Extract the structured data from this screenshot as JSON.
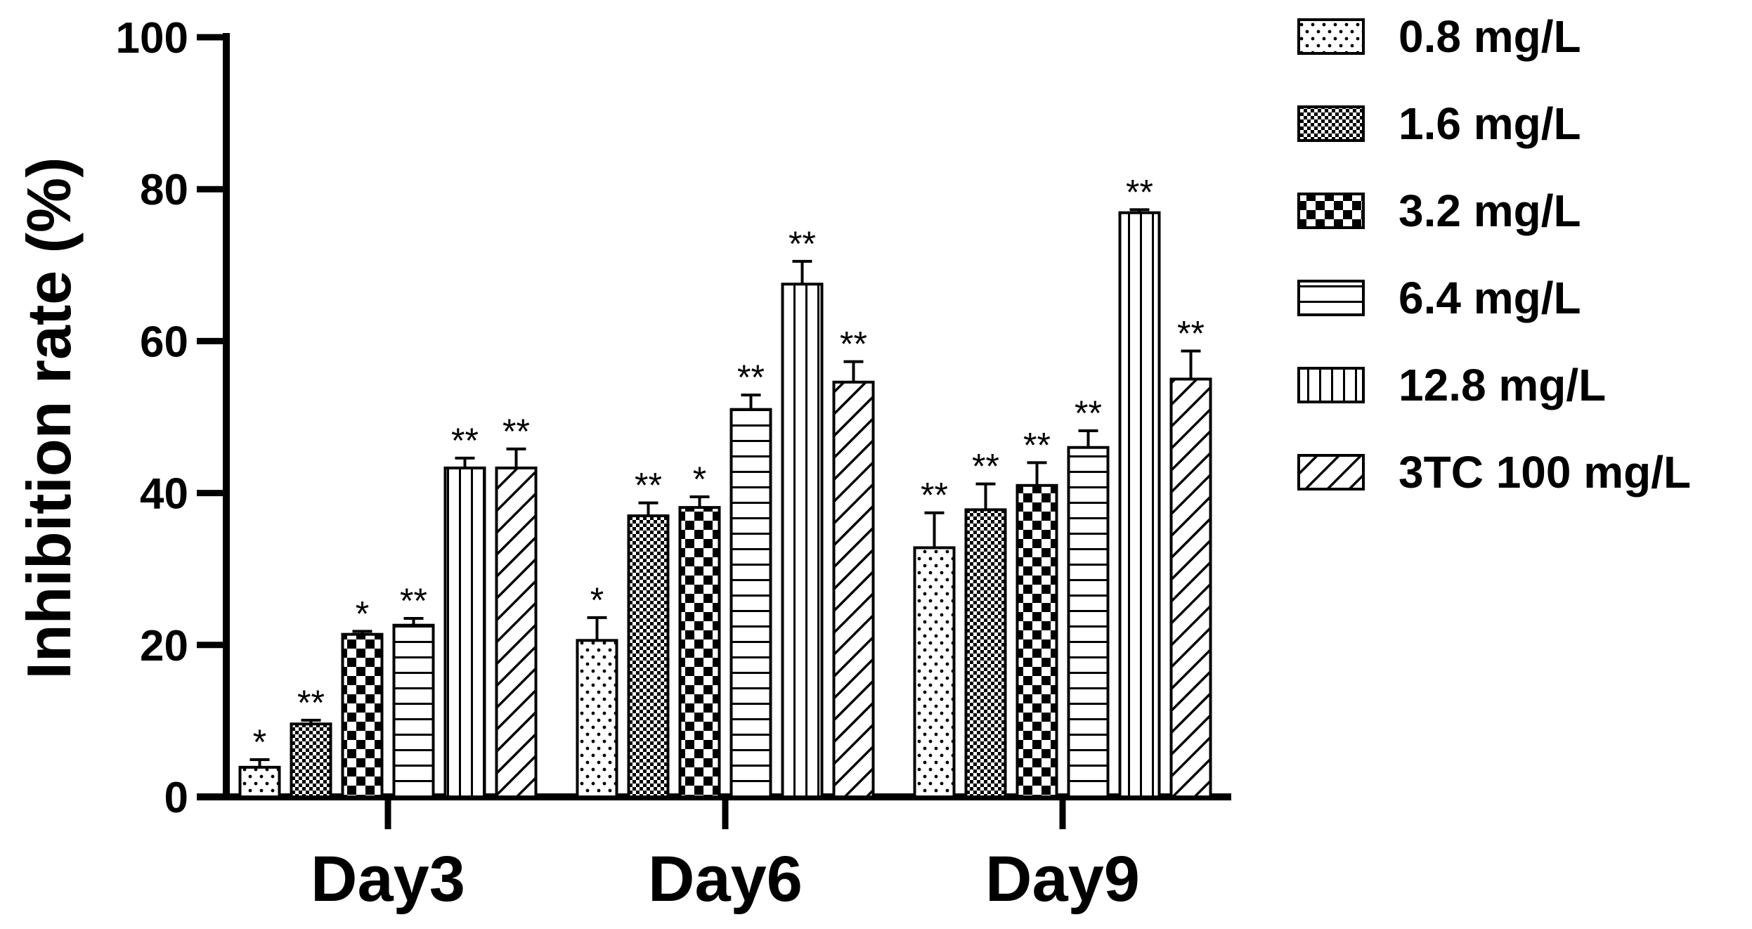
{
  "chart_data": {
    "type": "bar",
    "title": "",
    "xlabel": "",
    "ylabel": "Inhibition rate (%)",
    "ylim": [
      0,
      100
    ],
    "yticks": [
      0,
      20,
      40,
      60,
      80,
      100
    ],
    "grid": false,
    "legend_position": "right",
    "categories": [
      "Day3",
      "Day6",
      "Day9"
    ],
    "series": [
      {
        "name": "0.8 mg/L",
        "pattern": "dots",
        "values": [
          3.9,
          20.6,
          32.8
        ],
        "errors": [
          1.0,
          3.0,
          4.6
        ],
        "significance": [
          "*",
          "*",
          "**"
        ]
      },
      {
        "name": "1.6 mg/L",
        "pattern": "fine-checker",
        "values": [
          9.6,
          37.0,
          37.8
        ],
        "errors": [
          0.5,
          1.7,
          3.4
        ],
        "significance": [
          "**",
          "**",
          "**"
        ]
      },
      {
        "name": "3.2 mg/L",
        "pattern": "checker",
        "values": [
          21.4,
          38.1,
          41.0
        ],
        "errors": [
          0.4,
          1.4,
          3.0
        ],
        "significance": [
          "*",
          "*",
          "**"
        ]
      },
      {
        "name": "6.4 mg/L",
        "pattern": "horizontal",
        "values": [
          22.6,
          51.0,
          46.0
        ],
        "errors": [
          0.9,
          1.9,
          2.2
        ],
        "significance": [
          "**",
          "**",
          "**"
        ]
      },
      {
        "name": "12.8 mg/L",
        "pattern": "vertical",
        "values": [
          43.3,
          67.5,
          76.9
        ],
        "errors": [
          1.3,
          3.0,
          0.4
        ],
        "significance": [
          "**",
          "**",
          "**"
        ]
      },
      {
        "name": "3TC 100 mg/L",
        "pattern": "diagonal",
        "values": [
          43.3,
          54.6,
          55.0
        ],
        "errors": [
          2.5,
          2.7,
          3.7
        ],
        "significance": [
          "**",
          "**",
          "**"
        ]
      }
    ]
  }
}
